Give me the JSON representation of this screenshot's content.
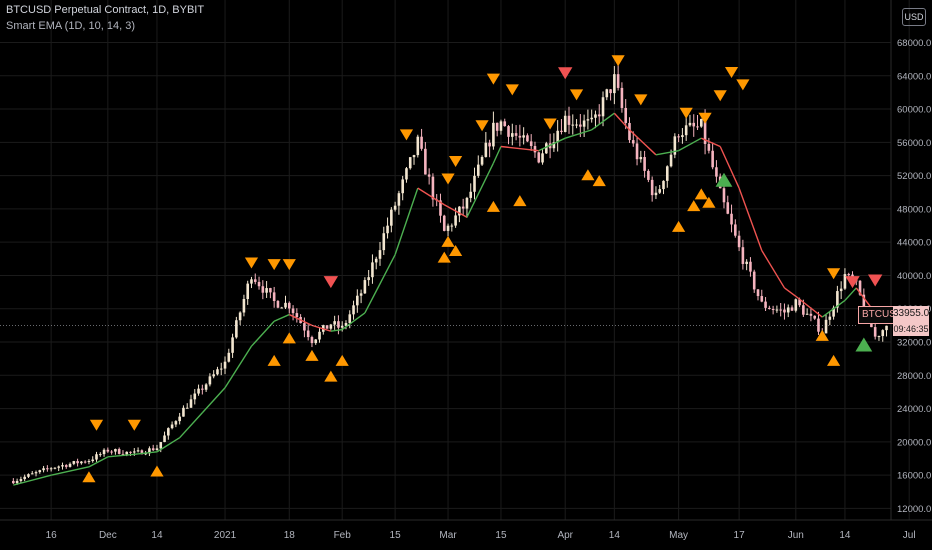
{
  "header": {
    "title": "BTCUSD Perpetual Contract, 1D, BYBIT",
    "indicator": "Smart EMA (1D, 10, 14, 3)"
  },
  "price_axis": {
    "currency": "USD",
    "ticks": [
      "68000.0",
      "64000.0",
      "60000.0",
      "56000.0",
      "52000.0",
      "48000.0",
      "44000.0",
      "40000.0",
      "36000.0",
      "32000.0",
      "28000.0",
      "24000.0",
      "20000.0",
      "16000.0",
      "12000.0"
    ]
  },
  "time_axis": {
    "ticks": [
      "16",
      "Dec",
      "14",
      "2021",
      "18",
      "Feb",
      "15",
      "Mar",
      "15",
      "Apr",
      "14",
      "May",
      "17",
      "Jun",
      "14",
      "Jul"
    ]
  },
  "last_price": {
    "symbol": "BTCUSD",
    "value": "33955.0",
    "countdown": "09:46:35"
  },
  "colors": {
    "background": "#000000",
    "candle_up": "#f3e6d0",
    "candle_down": "#f6b4bf",
    "ema_rising": "#4caf50",
    "ema_falling": "#ef5350",
    "signal_orange": "#ff9800",
    "signal_red": "#f05252",
    "signal_green": "#4caf50",
    "grid": "#1b1b1b"
  },
  "chart_data": {
    "type": "candlestick",
    "symbol": "BTCUSD",
    "interval": "1D",
    "x": [
      "2020-11-06",
      "2020-11-16",
      "2020-11-26",
      "2020-12-01",
      "2020-12-08",
      "2020-12-14",
      "2020-12-20",
      "2020-12-26",
      "2021-01-01",
      "2021-01-08",
      "2021-01-14",
      "2021-01-18",
      "2021-01-24",
      "2021-01-29",
      "2021-02-01",
      "2021-02-07",
      "2021-02-15",
      "2021-02-21",
      "2021-02-28",
      "2021-03-06",
      "2021-03-13",
      "2021-03-15",
      "2021-03-25",
      "2021-04-01",
      "2021-04-08",
      "2021-04-14",
      "2021-04-18",
      "2021-04-25",
      "2021-05-01",
      "2021-05-07",
      "2021-05-12",
      "2021-05-17",
      "2021-05-23",
      "2021-05-29",
      "2021-06-01",
      "2021-06-08",
      "2021-06-14",
      "2021-06-17",
      "2021-06-22",
      "2021-06-25"
    ],
    "close": [
      15300,
      16900,
      17800,
      19000,
      18600,
      19300,
      23400,
      26500,
      29500,
      40200,
      36800,
      36500,
      32300,
      34200,
      33600,
      38800,
      48500,
      55900,
      45200,
      48800,
      57600,
      58400,
      54300,
      58900,
      58000,
      63500,
      56500,
      49300,
      57400,
      57800,
      49700,
      43200,
      36500,
      35600,
      36700,
      33300,
      40000,
      38700,
      32600,
      33955
    ],
    "ema": [
      14800,
      16000,
      17000,
      18200,
      18500,
      18800,
      20500,
      23500,
      26500,
      31500,
      34500,
      35300,
      34000,
      33300,
      33500,
      35500,
      42500,
      50500,
      48500,
      47000,
      53500,
      55500,
      55000,
      56500,
      57500,
      59500,
      57500,
      54500,
      55000,
      56500,
      55500,
      50500,
      43000,
      38500,
      37500,
      35000,
      37000,
      38500,
      35500,
      34800
    ],
    "signals_up": [
      [
        "2020-11-26",
        15800
      ],
      [
        "2020-12-14",
        16500
      ],
      [
        "2021-01-14",
        29800
      ],
      [
        "2021-01-18",
        32500
      ],
      [
        "2021-01-24",
        30400
      ],
      [
        "2021-01-29",
        27900
      ],
      [
        "2021-02-01",
        29800
      ],
      [
        "2021-02-28",
        42200
      ],
      [
        "2021-03-01",
        44100
      ],
      [
        "2021-03-03",
        43000
      ],
      [
        "2021-03-13",
        48300
      ],
      [
        "2021-03-20",
        49000
      ],
      [
        "2021-04-07",
        52100
      ],
      [
        "2021-04-10",
        51400
      ],
      [
        "2021-05-01",
        45900
      ],
      [
        "2021-05-05",
        48400
      ],
      [
        "2021-05-07",
        49800
      ],
      [
        "2021-05-09",
        48800
      ],
      [
        "2021-06-08",
        32800
      ],
      [
        "2021-06-11",
        29800
      ]
    ],
    "signals_down": [
      [
        "2020-11-28",
        22000
      ],
      [
        "2020-12-08",
        22000
      ],
      [
        "2021-01-08",
        41500
      ],
      [
        "2021-01-14",
        41300
      ],
      [
        "2021-01-18",
        41300
      ],
      [
        "2021-02-18",
        56900
      ],
      [
        "2021-03-01",
        51600
      ],
      [
        "2021-03-03",
        53700
      ],
      [
        "2021-03-10",
        58000
      ],
      [
        "2021-03-13",
        63600
      ],
      [
        "2021-03-18",
        62300
      ],
      [
        "2021-03-28",
        58200
      ],
      [
        "2021-04-04",
        61700
      ],
      [
        "2021-04-15",
        65800
      ],
      [
        "2021-04-21",
        61100
      ],
      [
        "2021-05-03",
        59500
      ],
      [
        "2021-05-08",
        58900
      ],
      [
        "2021-05-12",
        61600
      ],
      [
        "2021-05-15",
        64400
      ],
      [
        "2021-05-18",
        62900
      ],
      [
        "2021-06-11",
        40200
      ]
    ],
    "signals_down_red": [
      [
        "2021-01-29",
        39200
      ],
      [
        "2021-04-01",
        64300
      ],
      [
        "2021-06-16",
        39200
      ],
      [
        "2021-06-22",
        39400
      ]
    ],
    "signals_up_green": [
      [
        "2021-05-13",
        51500
      ],
      [
        "2021-06-19",
        31700
      ]
    ],
    "ylim": [
      10000,
      70000
    ]
  }
}
